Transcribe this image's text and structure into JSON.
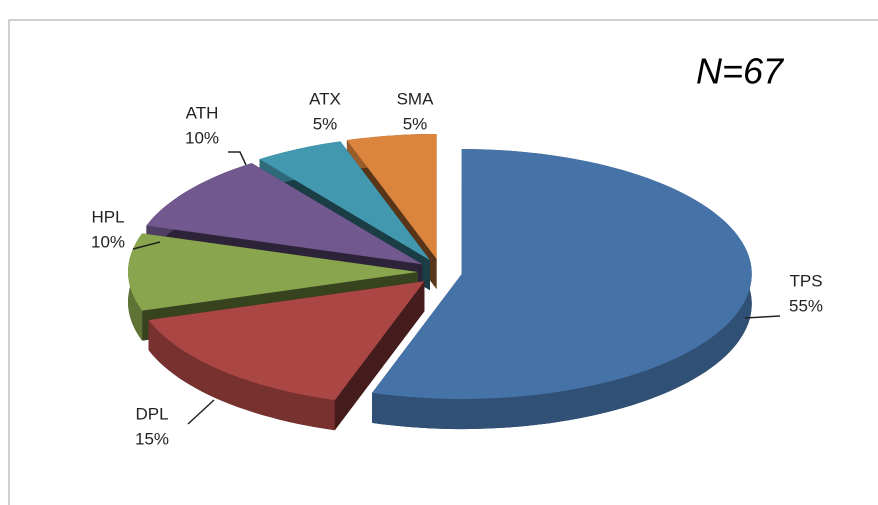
{
  "chart_data": {
    "type": "pie",
    "annotation": "N=67",
    "categories": [
      "TPS",
      "DPL",
      "HPL",
      "ATH",
      "ATX",
      "SMA"
    ],
    "values": [
      55,
      15,
      10,
      10,
      5,
      5
    ],
    "value_labels": [
      "55%",
      "15%",
      "10%",
      "10%",
      "5%",
      "5%"
    ],
    "colors": [
      "#4572a7",
      "#aa4643",
      "#89a54e",
      "#71588f",
      "#4198af",
      "#db843d"
    ]
  }
}
